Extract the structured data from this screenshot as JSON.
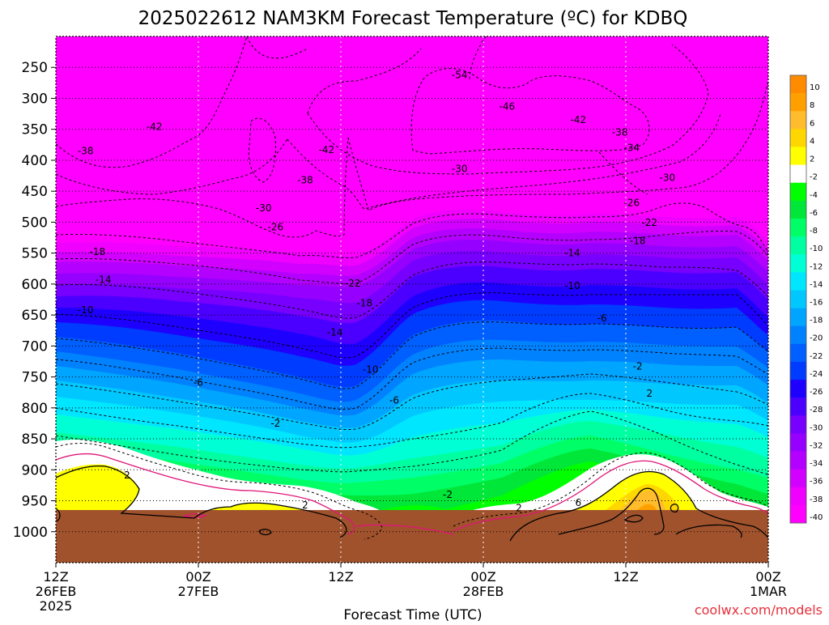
{
  "chart_data": {
    "type": "heatmap",
    "title": "2025022612 NAM3KM Forecast Temperature (ºC) for KDBQ",
    "xlabel": "Forecast Time (UTC)",
    "ylabel": "",
    "credit": "coolwx.com/models",
    "x_hours": [
      0,
      12,
      24,
      36,
      48,
      60
    ],
    "x_ticks": [
      {
        "lines": [
          "12Z",
          "26FEB",
          "2025"
        ]
      },
      {
        "lines": [
          "00Z",
          "27FEB"
        ]
      },
      {
        "lines": [
          "12Z"
        ]
      },
      {
        "lines": [
          "00Z",
          "28FEB"
        ]
      },
      {
        "lines": [
          "12Z"
        ]
      },
      {
        "lines": [
          "00Z",
          "1MAR"
        ]
      }
    ],
    "y_ticks": [
      "250",
      "300",
      "350",
      "400",
      "450",
      "500",
      "550",
      "600",
      "650",
      "700",
      "750",
      "800",
      "850",
      "900",
      "950",
      "1000"
    ],
    "y_levels_hpa": [
      250,
      300,
      350,
      400,
      450,
      500,
      550,
      600,
      650,
      700,
      750,
      800,
      850,
      900,
      950,
      1000
    ],
    "ylim_hpa": [
      200,
      1050
    ],
    "ground_hpa": 965,
    "colorbar": {
      "labels": [
        "10",
        "8",
        "6",
        "4",
        "2",
        "-2",
        "-4",
        "-6",
        "-8",
        "-10",
        "-12",
        "-14",
        "-16",
        "-18",
        "-20",
        "-22",
        "-24",
        "-26",
        "-28",
        "-30",
        "-32",
        "-34",
        "-36",
        "-38",
        "-40"
      ],
      "colors": [
        "#ff8c00",
        "#ffa000",
        "#ffbd2d",
        "#ffd700",
        "#ffff00",
        "#ffffff",
        "#00ff00",
        "#00e639",
        "#00ff66",
        "#00ffa0",
        "#00ffd5",
        "#00e6ff",
        "#00c8ff",
        "#00a5ff",
        "#0082ff",
        "#005fff",
        "#003cff",
        "#1e00ff",
        "#4b00ff",
        "#7800ff",
        "#9600ff",
        "#b400ff",
        "#d200ff",
        "#f000ff",
        "#ff00ff"
      ]
    },
    "contour_labels": [
      {
        "text": "-54",
        "hour": 34.0,
        "hpa": 262
      },
      {
        "text": "-46",
        "hour": 38.0,
        "hpa": 313
      },
      {
        "text": "-42",
        "hour": 8.3,
        "hpa": 346
      },
      {
        "text": "-42",
        "hour": 22.8,
        "hpa": 383
      },
      {
        "text": "-42",
        "hour": 44.0,
        "hpa": 335
      },
      {
        "text": "-38",
        "hour": 2.5,
        "hpa": 385
      },
      {
        "text": "-38",
        "hour": 21.0,
        "hpa": 432
      },
      {
        "text": "-38",
        "hour": 47.5,
        "hpa": 355
      },
      {
        "text": "-34",
        "hour": 48.5,
        "hpa": 380
      },
      {
        "text": "-30",
        "hour": 17.5,
        "hpa": 477
      },
      {
        "text": "-30",
        "hour": 34.0,
        "hpa": 414
      },
      {
        "text": "-30",
        "hour": 51.5,
        "hpa": 428
      },
      {
        "text": "-26",
        "hour": 18.5,
        "hpa": 508
      },
      {
        "text": "-26",
        "hour": 48.5,
        "hpa": 469
      },
      {
        "text": "-22",
        "hour": 25.0,
        "hpa": 599
      },
      {
        "text": "-22",
        "hour": 50.0,
        "hpa": 501
      },
      {
        "text": "-18",
        "hour": 3.5,
        "hpa": 548
      },
      {
        "text": "-18",
        "hour": 26.0,
        "hpa": 631
      },
      {
        "text": "-18",
        "hour": 49.0,
        "hpa": 530
      },
      {
        "text": "-14",
        "hour": 4.0,
        "hpa": 593
      },
      {
        "text": "-14",
        "hour": 23.5,
        "hpa": 678
      },
      {
        "text": "-14",
        "hour": 43.5,
        "hpa": 550
      },
      {
        "text": "-10",
        "hour": 2.5,
        "hpa": 642
      },
      {
        "text": "-10",
        "hour": 26.5,
        "hpa": 738
      },
      {
        "text": "-10",
        "hour": 43.5,
        "hpa": 603
      },
      {
        "text": "-6",
        "hour": 12.0,
        "hpa": 759
      },
      {
        "text": "-6",
        "hour": 28.5,
        "hpa": 788
      },
      {
        "text": "-6",
        "hour": 46.0,
        "hpa": 655
      },
      {
        "text": "-2",
        "hour": 18.5,
        "hpa": 825
      },
      {
        "text": "-2",
        "hour": 33.0,
        "hpa": 940
      },
      {
        "text": "-2",
        "hour": 49.0,
        "hpa": 733
      },
      {
        "text": "2",
        "hour": 6.0,
        "hpa": 909
      },
      {
        "text": "2",
        "hour": 21.0,
        "hpa": 957
      },
      {
        "text": "2",
        "hour": 39.0,
        "hpa": 962
      },
      {
        "text": "2",
        "hour": 50.0,
        "hpa": 777
      },
      {
        "text": "6",
        "hour": 44.0,
        "hpa": 953
      }
    ]
  }
}
